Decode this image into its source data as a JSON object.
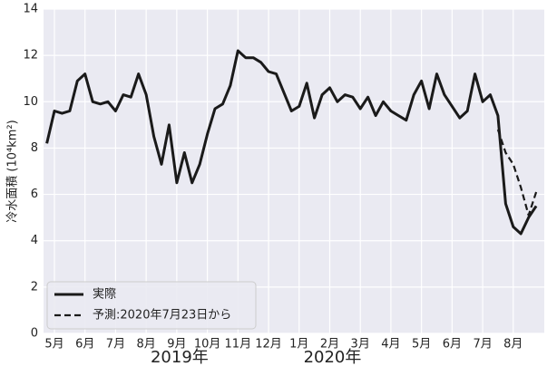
{
  "chart_data": {
    "type": "line",
    "ylabel": "冷水面積 (10⁴km²)",
    "year_labels": [
      "2019年",
      "2020年"
    ],
    "categories": [
      null,
      "5月",
      null,
      null,
      null,
      "6月",
      null,
      null,
      null,
      "7月",
      null,
      null,
      null,
      "8月",
      null,
      null,
      null,
      "9月",
      null,
      null,
      null,
      "10月",
      null,
      null,
      null,
      "11月",
      null,
      null,
      null,
      "12月",
      null,
      null,
      null,
      "1月",
      null,
      null,
      null,
      "2月",
      null,
      null,
      null,
      "3月",
      null,
      null,
      null,
      "4月",
      null,
      null,
      null,
      "5月",
      null,
      null,
      null,
      "6月",
      null,
      null,
      null,
      "7月",
      null,
      null,
      null,
      "8月",
      null,
      null,
      null
    ],
    "series": [
      {
        "name": "実際",
        "color": "#1a1a1a",
        "dash": false,
        "values": [
          8.2,
          9.6,
          9.5,
          9.6,
          10.9,
          11.2,
          10.0,
          9.9,
          10.0,
          9.6,
          10.3,
          10.2,
          11.2,
          10.3,
          8.5,
          7.3,
          9.0,
          6.5,
          7.8,
          6.5,
          7.3,
          8.6,
          9.7,
          9.9,
          10.7,
          12.2,
          11.9,
          11.9,
          11.7,
          11.3,
          11.2,
          10.4,
          9.6,
          9.8,
          10.8,
          9.3,
          10.3,
          10.6,
          10.0,
          10.3,
          10.2,
          9.7,
          10.2,
          9.4,
          10.0,
          9.6,
          9.4,
          9.2,
          10.3,
          10.9,
          9.7,
          11.2,
          10.3,
          9.8,
          9.3,
          9.6,
          11.2,
          10.0,
          10.3,
          9.4,
          5.6,
          4.6,
          4.3,
          5.0,
          5.5
        ]
      },
      {
        "name": "予測:2020年7月23日から",
        "color": "#1a1a1a",
        "dash": true,
        "values": [
          null,
          null,
          null,
          null,
          null,
          null,
          null,
          null,
          null,
          null,
          null,
          null,
          null,
          null,
          null,
          null,
          null,
          null,
          null,
          null,
          null,
          null,
          null,
          null,
          null,
          null,
          null,
          null,
          null,
          null,
          null,
          null,
          null,
          null,
          null,
          null,
          null,
          null,
          null,
          null,
          null,
          null,
          null,
          null,
          null,
          null,
          null,
          null,
          null,
          null,
          null,
          null,
          null,
          null,
          null,
          null,
          null,
          null,
          null,
          8.8,
          7.8,
          7.3,
          6.3,
          5.1,
          6.1
        ]
      }
    ],
    "ylim": [
      0,
      14
    ],
    "yticks": [
      0,
      2,
      4,
      6,
      8,
      10,
      12,
      14
    ],
    "grid": true,
    "legend": "lower left"
  }
}
